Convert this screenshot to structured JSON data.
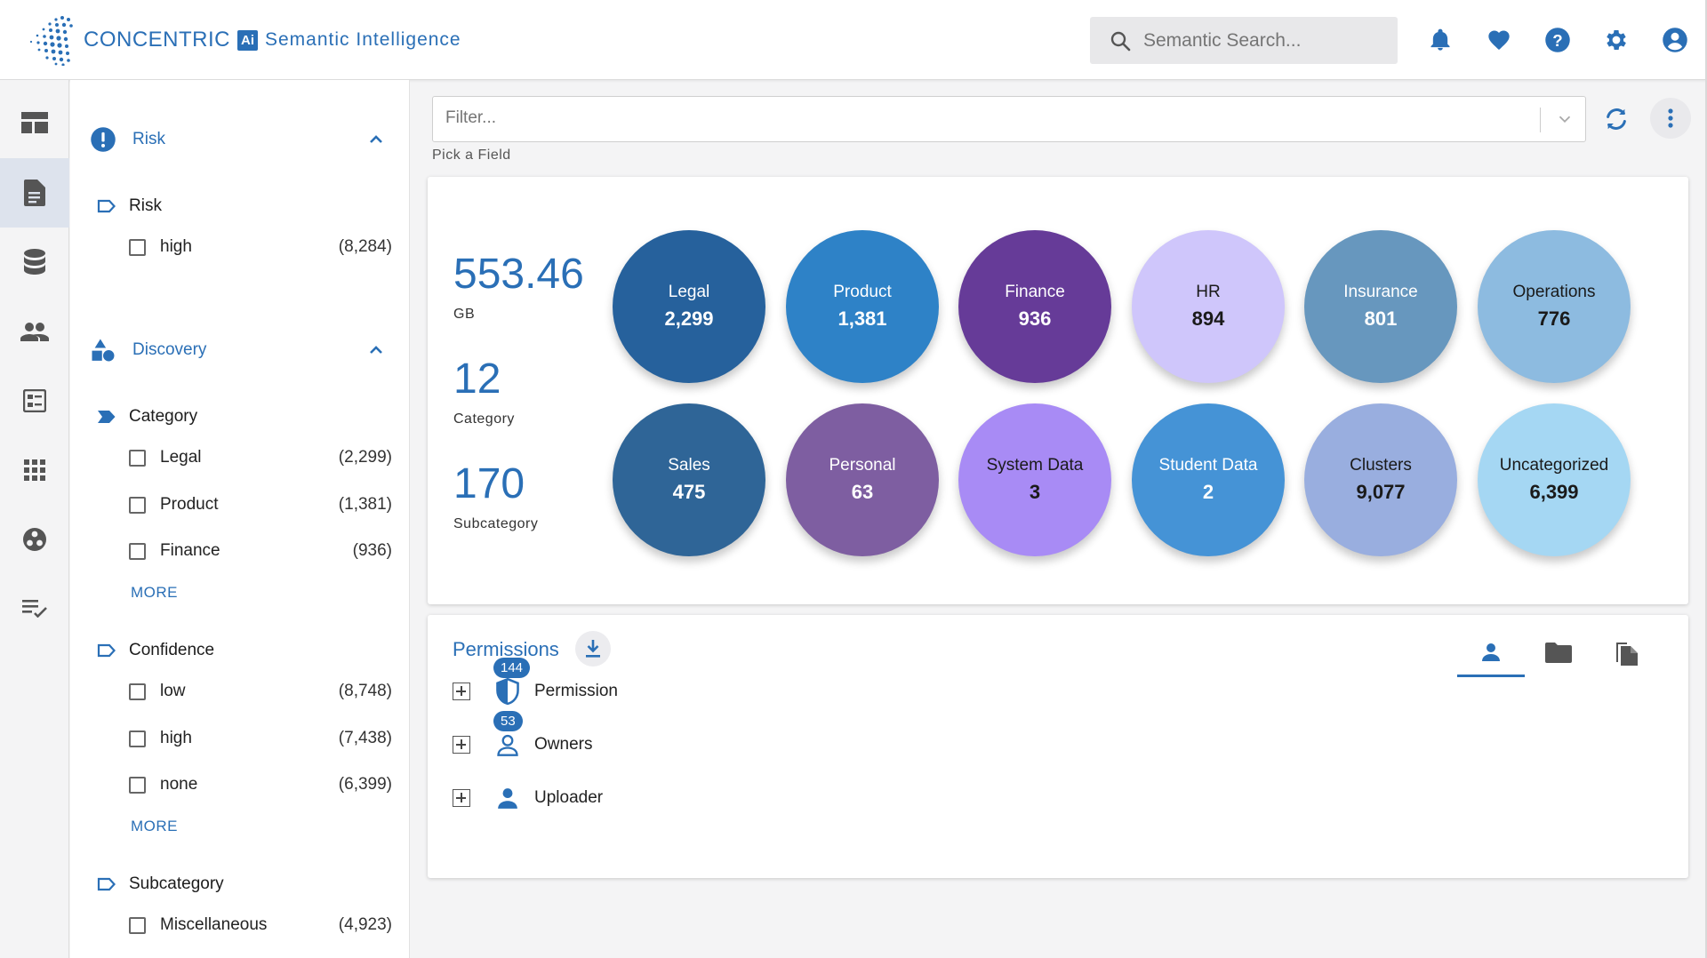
{
  "header": {
    "brand": "CONCENTRIC",
    "brand_badge": "Ai",
    "brand_sub": "Semantic Intelligence",
    "search_placeholder": "Semantic Search...",
    "icons": [
      "bell-icon",
      "heart-icon",
      "help-icon",
      "settings-icon",
      "account-icon"
    ]
  },
  "rail": {
    "items": [
      "dashboard-icon",
      "document-icon",
      "database-icon",
      "users-icon",
      "report-icon",
      "apps-icon",
      "integrations-icon",
      "tasks-icon"
    ],
    "active": "document-icon"
  },
  "facets": {
    "risk": {
      "title": "Risk",
      "group": "Risk",
      "items": [
        {
          "label": "high",
          "count": "(8,284)"
        }
      ]
    },
    "discovery": {
      "title": "Discovery",
      "category": {
        "title": "Category",
        "items": [
          {
            "label": "Legal",
            "count": "(2,299)"
          },
          {
            "label": "Product",
            "count": "(1,381)"
          },
          {
            "label": "Finance",
            "count": "(936)"
          }
        ],
        "more": "MORE"
      },
      "confidence": {
        "title": "Confidence",
        "items": [
          {
            "label": "low",
            "count": "(8,748)"
          },
          {
            "label": "high",
            "count": "(7,438)"
          },
          {
            "label": "none",
            "count": "(6,399)"
          }
        ],
        "more": "MORE"
      },
      "subcategory": {
        "title": "Subcategory",
        "items": [
          {
            "label": "Miscellaneous",
            "count": "(4,923)"
          }
        ]
      }
    }
  },
  "filter": {
    "placeholder": "Filter...",
    "hint": "Pick a Field"
  },
  "stats": {
    "size": {
      "value": "553.46",
      "label": "GB"
    },
    "categories": {
      "value": "12",
      "label": "Category"
    },
    "subcategories": {
      "value": "170",
      "label": "Subcategory"
    }
  },
  "bubbles": [
    {
      "name": "Legal",
      "value": "2,299",
      "color": "#26619c",
      "text": "#ffffff"
    },
    {
      "name": "Product",
      "value": "1,381",
      "color": "#2e82c7",
      "text": "#ffffff"
    },
    {
      "name": "Finance",
      "value": "936",
      "color": "#663b98",
      "text": "#ffffff"
    },
    {
      "name": "HR",
      "value": "894",
      "color": "#cfc6fb",
      "text": "#1a1a1a"
    },
    {
      "name": "Insurance",
      "value": "801",
      "color": "#6797be",
      "text": "#ffffff"
    },
    {
      "name": "Operations",
      "value": "776",
      "color": "#8dbbe0",
      "text": "#1a1a1a"
    },
    {
      "name": "Sales",
      "value": "475",
      "color": "#2f6597",
      "text": "#ffffff"
    },
    {
      "name": "Personal",
      "value": "63",
      "color": "#7e5ea1",
      "text": "#ffffff"
    },
    {
      "name": "System Data",
      "value": "3",
      "color": "#a88bf5",
      "text": "#1a1a1a"
    },
    {
      "name": "Student Data",
      "value": "2",
      "color": "#4593d6",
      "text": "#ffffff"
    },
    {
      "name": "Clusters",
      "value": "9,077",
      "color": "#99aedf",
      "text": "#1a1a1a"
    },
    {
      "name": "Uncategorized",
      "value": "6,399",
      "color": "#a5d7f3",
      "text": "#1a1a1a"
    }
  ],
  "permissions": {
    "title": "Permissions",
    "tabs": [
      "user-tab-icon",
      "folder-tab-icon",
      "files-tab-icon"
    ],
    "active_tab": "user-tab-icon",
    "rows": [
      {
        "label": "Permission",
        "badge": "144"
      },
      {
        "label": "Owners",
        "badge": "53"
      },
      {
        "label": "Uploader",
        "badge": ""
      }
    ]
  },
  "colors": {
    "accent": "#2a6fb6",
    "rail_active": "#dde3ed"
  }
}
